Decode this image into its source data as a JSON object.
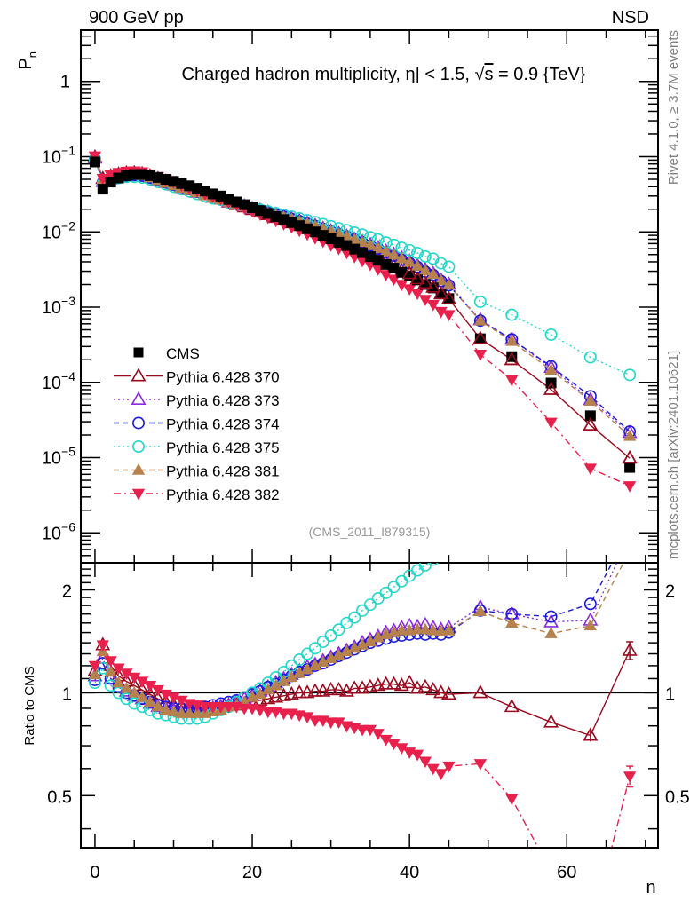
{
  "chart_data": {
    "type": "scatter",
    "header_left": "900 GeV pp",
    "header_right": "NSD",
    "title": "Charged hadron multiplicity, η| < 1.5, √s = 0.9 {TeV}",
    "title_parts": {
      "pre": "Charged hadron multiplicity, ",
      "eta": "η",
      "mid": "| < 1.5, ",
      "sqrt": "√",
      "s": "s",
      "post": " = 0.9 {TeV}"
    },
    "analysis_label": "(CMS_2011_I879315)",
    "side_label_top": "Rivet 4.1.0, ≥ 3.7M events",
    "side_label_bottom": "mcplots.cern.ch [arXiv:2401.10621]",
    "xlabel": "n",
    "ylabel_main": "P",
    "ylabel_main_sub": "n",
    "ylabel_ratio": "Ratio to CMS",
    "xlim": [
      -1.8,
      71.6
    ],
    "x_ticks": [
      0,
      20,
      40,
      60
    ],
    "x_tick_labels": [
      "0",
      "20",
      "40",
      "60"
    ],
    "main_panel": {
      "yscale": "log",
      "ylim": [
        4e-07,
        4.8
      ],
      "y_ticks": [
        1,
        0.1,
        0.01,
        0.001,
        0.0001,
        1e-05,
        1e-06
      ],
      "y_tick_labels": [
        {
          "base": "1",
          "exp": ""
        },
        {
          "base": "10",
          "exp": "−1"
        },
        {
          "base": "10",
          "exp": "−2"
        },
        {
          "base": "10",
          "exp": "−3"
        },
        {
          "base": "10",
          "exp": "−4"
        },
        {
          "base": "10",
          "exp": "−5"
        },
        {
          "base": "10",
          "exp": "−6"
        }
      ]
    },
    "ratio_panel": {
      "yscale": "log",
      "ylim": [
        0.352,
        2.4
      ],
      "y_ticks": [
        0.5,
        1,
        2
      ],
      "y_tick_labels": [
        "0.5",
        "1",
        "2"
      ],
      "reference_line": 1
    },
    "legend": {
      "position": "bottom-left",
      "entries": [
        {
          "label": "CMS",
          "series": "CMS"
        },
        {
          "label": "Pythia 6.428 370",
          "series": "370"
        },
        {
          "label": "Pythia 6.428 373",
          "series": "373"
        },
        {
          "label": "Pythia 6.428 374",
          "series": "374"
        },
        {
          "label": "Pythia 6.428 375",
          "series": "375"
        },
        {
          "label": "Pythia 6.428 381",
          "series": "381"
        },
        {
          "label": "Pythia 6.428 382",
          "series": "382"
        }
      ]
    },
    "x": [
      0,
      1,
      2,
      3,
      4,
      5,
      6,
      7,
      8,
      9,
      10,
      11,
      12,
      13,
      14,
      15,
      16,
      17,
      18,
      19,
      20,
      21,
      22,
      23,
      24,
      25,
      26,
      27,
      28,
      29,
      30,
      31,
      32,
      33,
      34,
      35,
      36,
      37,
      38,
      39,
      40,
      41,
      42,
      43,
      44,
      45,
      49,
      53,
      58,
      63,
      68
    ],
    "reference": {
      "name": "CMS",
      "color": "#000000",
      "marker": "filled-square",
      "values": [
        0.085,
        0.037,
        0.046,
        0.052,
        0.056,
        0.058,
        0.058,
        0.056,
        0.053,
        0.05,
        0.047,
        0.044,
        0.041,
        0.038,
        0.035,
        0.032,
        0.03,
        0.027,
        0.025,
        0.023,
        0.021,
        0.0192,
        0.0176,
        0.016,
        0.0146,
        0.0133,
        0.0121,
        0.011,
        0.01,
        0.009,
        0.0081,
        0.0073,
        0.0066,
        0.0059,
        0.0053,
        0.0047,
        0.0042,
        0.0037,
        0.0033,
        0.0029,
        0.0026,
        0.0023,
        0.002,
        0.0018,
        0.0015,
        0.0013,
        0.00038,
        0.00022,
        9.8e-05,
        3.6e-05,
        7.4e-06
      ]
    },
    "series": [
      {
        "name": "Pythia 6.428 370",
        "id": "370",
        "color": "#9b0a1e",
        "marker": "open-triangle-up",
        "line": "solid",
        "ratio": [
          1.16,
          1.38,
          1.2,
          1.12,
          1.08,
          1.05,
          1.02,
          0.99,
          0.96,
          0.94,
          0.92,
          0.91,
          0.91,
          0.9,
          0.9,
          0.9,
          0.91,
          0.92,
          0.92,
          0.93,
          0.94,
          0.95,
          0.96,
          0.97,
          0.98,
          0.99,
          1.0,
          1.0,
          1.01,
          1.01,
          1.02,
          1.02,
          1.01,
          1.03,
          1.03,
          1.04,
          1.05,
          1.06,
          1.06,
          1.05,
          1.07,
          1.03,
          1.04,
          1.02,
          1.0,
          0.99,
          1.0,
          0.91,
          0.82,
          0.75,
          1.33
        ]
      },
      {
        "name": "Pythia 6.428 373",
        "id": "373",
        "color": "#8a2be2",
        "marker": "open-triangle-up",
        "line": "dotted",
        "ratio": [
          1.12,
          1.26,
          1.1,
          1.04,
          1.01,
          0.98,
          0.96,
          0.93,
          0.91,
          0.9,
          0.89,
          0.88,
          0.88,
          0.88,
          0.89,
          0.9,
          0.91,
          0.92,
          0.94,
          0.96,
          0.98,
          1.01,
          1.04,
          1.07,
          1.1,
          1.13,
          1.16,
          1.19,
          1.21,
          1.24,
          1.27,
          1.3,
          1.33,
          1.36,
          1.4,
          1.43,
          1.46,
          1.5,
          1.52,
          1.55,
          1.57,
          1.56,
          1.58,
          1.55,
          1.53,
          1.55,
          1.78,
          1.7,
          1.61,
          1.63,
          2.9
        ]
      },
      {
        "name": "Pythia 6.428 374",
        "id": "374",
        "color": "#1a1adb",
        "marker": "open-circle",
        "line": "dashed",
        "ratio": [
          1.09,
          1.22,
          1.1,
          1.04,
          1.0,
          0.98,
          0.96,
          0.94,
          0.92,
          0.91,
          0.9,
          0.9,
          0.9,
          0.9,
          0.91,
          0.92,
          0.93,
          0.94,
          0.95,
          0.97,
          0.99,
          1.01,
          1.04,
          1.06,
          1.09,
          1.12,
          1.15,
          1.17,
          1.2,
          1.22,
          1.25,
          1.28,
          1.31,
          1.34,
          1.37,
          1.4,
          1.42,
          1.44,
          1.46,
          1.47,
          1.48,
          1.49,
          1.48,
          1.49,
          1.48,
          1.5,
          1.74,
          1.7,
          1.67,
          1.82,
          3.0
        ]
      },
      {
        "name": "Pythia 6.428 375",
        "id": "375",
        "color": "#20d8c8",
        "marker": "open-circle",
        "line": "dotted",
        "ratio": [
          1.07,
          1.18,
          1.05,
          1.0,
          0.96,
          0.93,
          0.91,
          0.89,
          0.87,
          0.86,
          0.85,
          0.84,
          0.84,
          0.84,
          0.85,
          0.87,
          0.89,
          0.91,
          0.94,
          0.97,
          1.0,
          1.03,
          1.07,
          1.11,
          1.15,
          1.2,
          1.25,
          1.3,
          1.35,
          1.41,
          1.47,
          1.53,
          1.6,
          1.66,
          1.74,
          1.81,
          1.89,
          1.96,
          2.04,
          2.12,
          2.2,
          2.28,
          2.36,
          2.45,
          2.55,
          2.65,
          3.1,
          3.6,
          4.4,
          6.0,
          17.0
        ]
      },
      {
        "name": "Pythia 6.428 381",
        "id": "381",
        "color": "#b7814e",
        "marker": "filled-triangle-up",
        "line": "dashed",
        "ratio": [
          1.13,
          1.32,
          1.15,
          1.07,
          1.03,
          1.0,
          0.97,
          0.94,
          0.91,
          0.89,
          0.88,
          0.87,
          0.87,
          0.87,
          0.87,
          0.88,
          0.89,
          0.91,
          0.92,
          0.94,
          0.97,
          0.99,
          1.02,
          1.05,
          1.08,
          1.11,
          1.14,
          1.17,
          1.2,
          1.23,
          1.26,
          1.29,
          1.32,
          1.35,
          1.38,
          1.41,
          1.45,
          1.48,
          1.5,
          1.52,
          1.52,
          1.53,
          1.53,
          1.52,
          1.51,
          1.52,
          1.73,
          1.6,
          1.49,
          1.57,
          2.6
        ]
      },
      {
        "name": "Pythia 6.428 382",
        "id": "382",
        "color": "#e8204c",
        "marker": "filled-triangle-down",
        "line": "dashdot",
        "ratio": [
          1.2,
          1.38,
          1.24,
          1.18,
          1.14,
          1.11,
          1.08,
          1.05,
          1.02,
          0.99,
          0.97,
          0.95,
          0.93,
          0.92,
          0.91,
          0.91,
          0.91,
          0.91,
          0.91,
          0.9,
          0.9,
          0.89,
          0.88,
          0.88,
          0.87,
          0.87,
          0.86,
          0.85,
          0.83,
          0.83,
          0.82,
          0.82,
          0.8,
          0.79,
          0.78,
          0.78,
          0.76,
          0.73,
          0.71,
          0.69,
          0.67,
          0.66,
          0.63,
          0.6,
          0.58,
          0.61,
          0.62,
          0.49,
          0.3,
          0.2,
          0.57
        ]
      }
    ]
  }
}
